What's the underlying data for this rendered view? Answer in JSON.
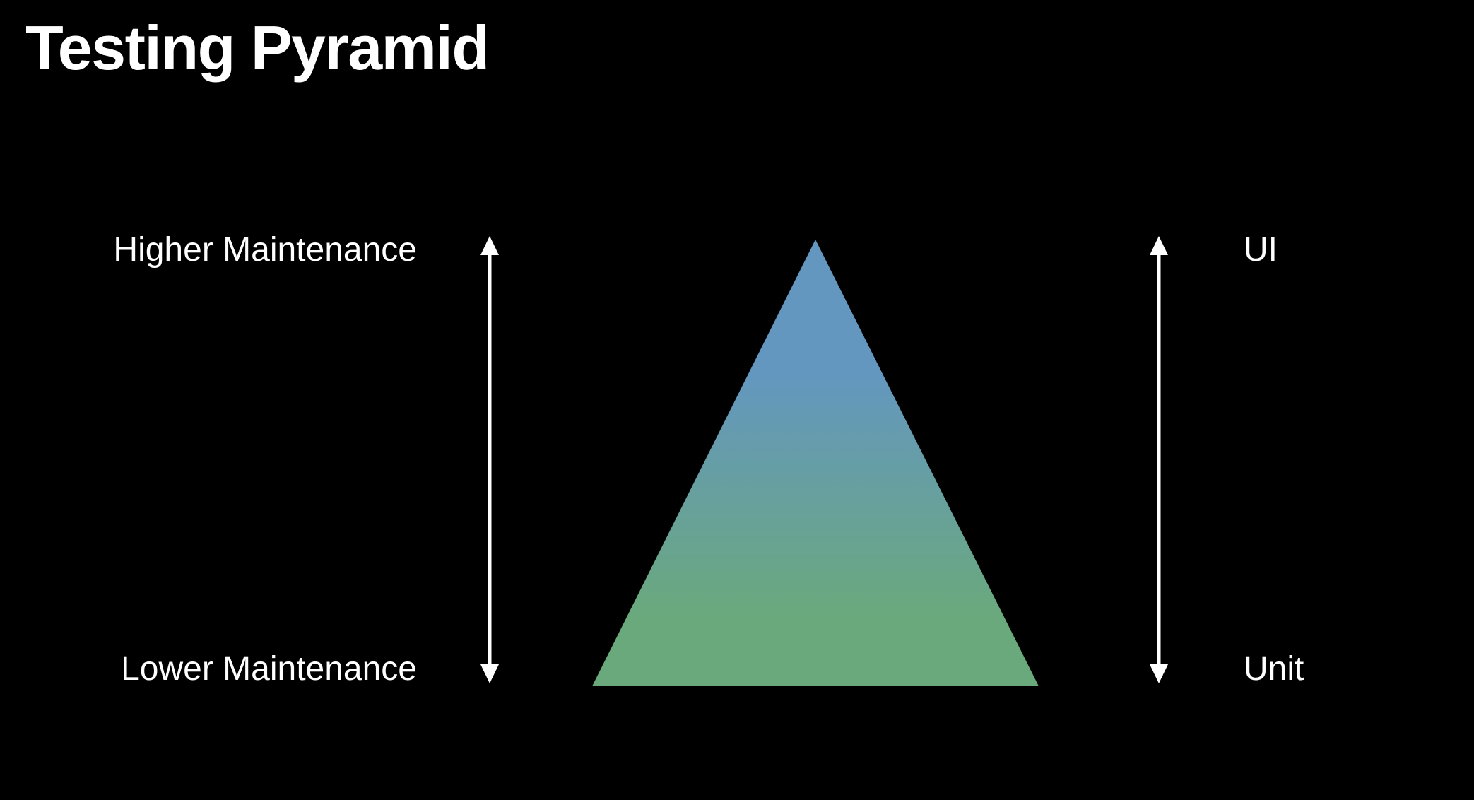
{
  "title": "Testing Pyramid",
  "left_axis": {
    "top_label": "Higher Maintenance",
    "bottom_label": "Lower Maintenance"
  },
  "right_axis": {
    "top_label": "UI",
    "bottom_label": "Unit"
  },
  "pyramid": {
    "top_color": "#6497bf",
    "bottom_color": "#6aa97c"
  },
  "arrow_color": "#ffffff"
}
